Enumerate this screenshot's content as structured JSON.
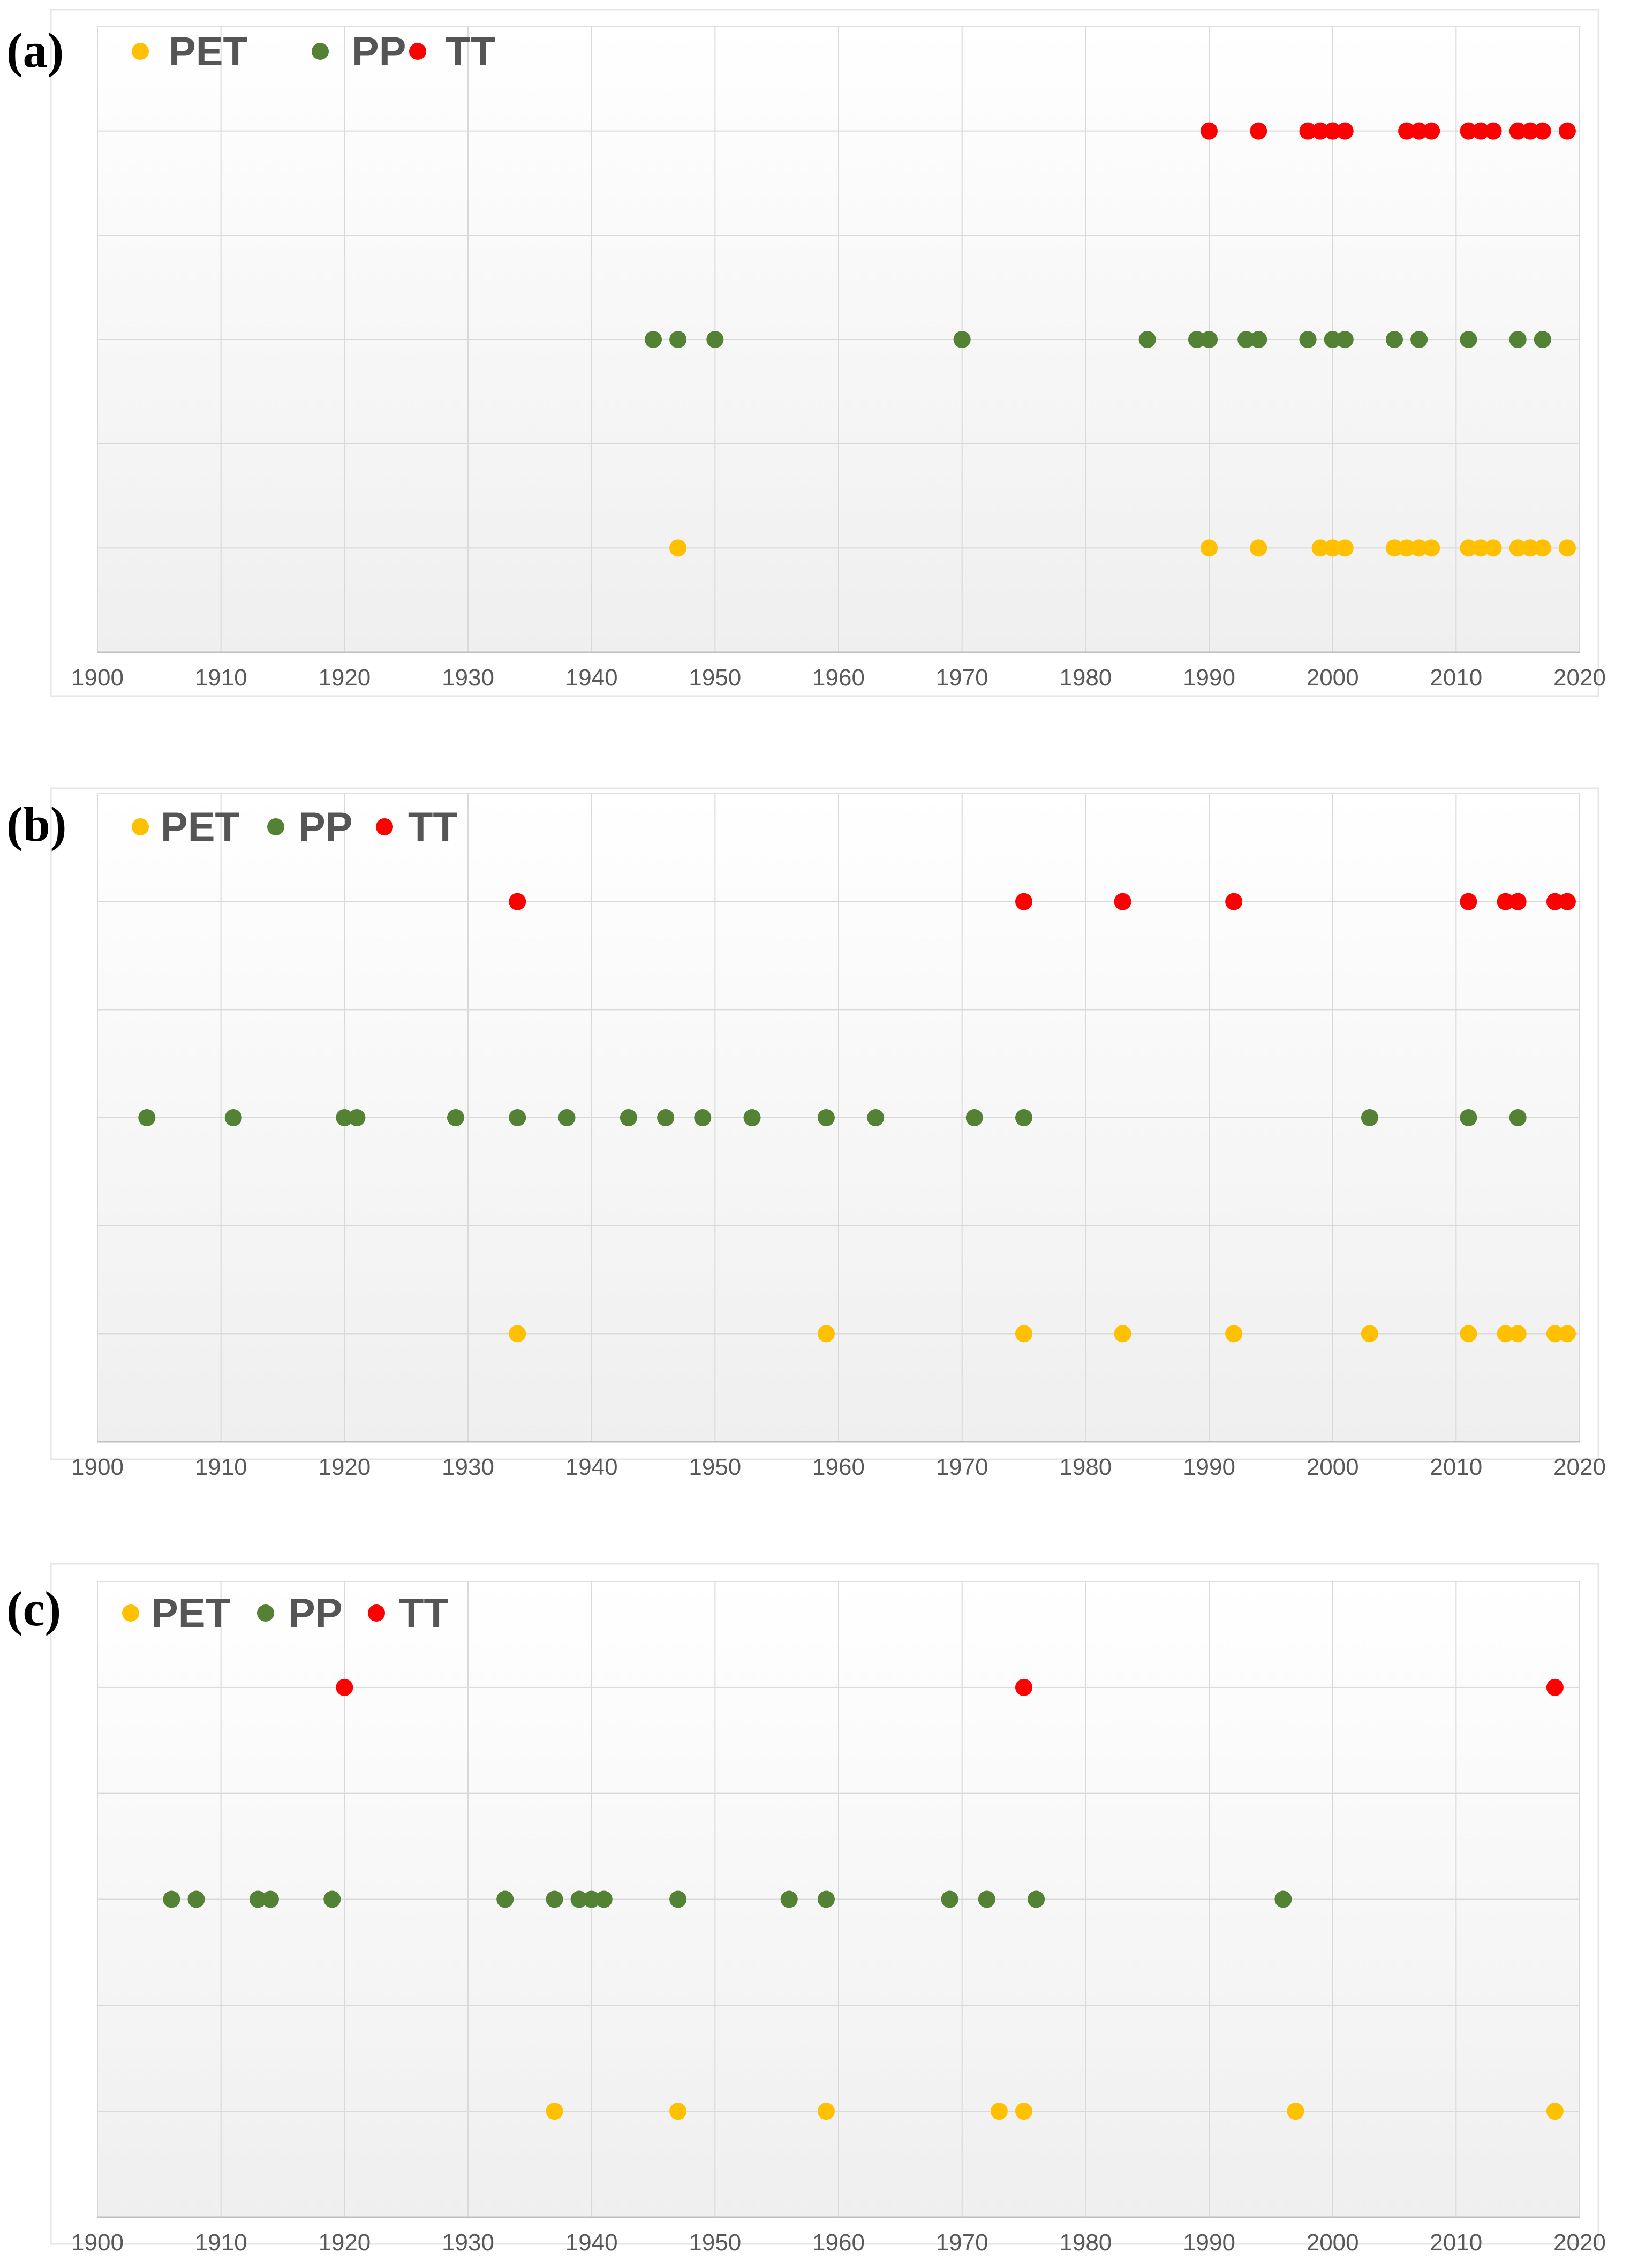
{
  "colors": {
    "PET": "#ffc000",
    "PP": "#548235",
    "TT": "#ff0000",
    "grid": "#d9d9d9",
    "axis": "#bfbfbf"
  },
  "chart_data": [
    {
      "type": "scatter",
      "panel_label": "(a)",
      "xlim": [
        1900,
        2020
      ],
      "x_ticks": [
        1900,
        1910,
        1920,
        1930,
        1940,
        1950,
        1960,
        1970,
        1980,
        1990,
        2000,
        2010,
        2020
      ],
      "grid": true,
      "legend_position": "top-left",
      "series": [
        {
          "name": "PET",
          "row": 1,
          "color": "#ffc000",
          "x": [
            1947,
            1990,
            1994,
            1999,
            2000,
            2001,
            2005,
            2006,
            2007,
            2008,
            2011,
            2012,
            2013,
            2015,
            2016,
            2017,
            2019
          ]
        },
        {
          "name": "PP",
          "row": 3,
          "color": "#548235",
          "x": [
            1945,
            1947,
            1950,
            1970,
            1985,
            1989,
            1990,
            1993,
            1994,
            1998,
            2000,
            2001,
            2005,
            2007,
            2011,
            2015,
            2017
          ]
        },
        {
          "name": "TT",
          "row": 5,
          "color": "#ff0000",
          "x": [
            1990,
            1994,
            1998,
            1999,
            2000,
            2001,
            2006,
            2007,
            2008,
            2011,
            2012,
            2013,
            2015,
            2016,
            2017,
            2019
          ]
        }
      ]
    },
    {
      "type": "scatter",
      "panel_label": "(b)",
      "xlim": [
        1900,
        2020
      ],
      "x_ticks": [
        1900,
        1910,
        1920,
        1930,
        1940,
        1950,
        1960,
        1970,
        1980,
        1990,
        2000,
        2010,
        2020
      ],
      "grid": true,
      "legend_position": "top-left",
      "series": [
        {
          "name": "PET",
          "row": 1,
          "color": "#ffc000",
          "x": [
            1934,
            1959,
            1975,
            1983,
            1992,
            2003,
            2011,
            2014,
            2015,
            2018,
            2019
          ]
        },
        {
          "name": "PP",
          "row": 3,
          "color": "#548235",
          "x": [
            1904,
            1911,
            1920,
            1921,
            1929,
            1934,
            1938,
            1943,
            1946,
            1949,
            1953,
            1959,
            1963,
            1971,
            1975,
            2003,
            2011,
            2015
          ]
        },
        {
          "name": "TT",
          "row": 5,
          "color": "#ff0000",
          "x": [
            1934,
            1975,
            1983,
            1992,
            2011,
            2014,
            2015,
            2018,
            2019
          ]
        }
      ]
    },
    {
      "type": "scatter",
      "panel_label": "(c)",
      "xlim": [
        1900,
        2020
      ],
      "x_ticks": [
        1900,
        1910,
        1920,
        1930,
        1940,
        1950,
        1960,
        1970,
        1980,
        1990,
        2000,
        2010,
        2020
      ],
      "grid": true,
      "legend_position": "top-left",
      "series": [
        {
          "name": "PET",
          "row": 1,
          "color": "#ffc000",
          "x": [
            1937,
            1947,
            1959,
            1973,
            1975,
            1997,
            2018
          ]
        },
        {
          "name": "PP",
          "row": 3,
          "color": "#548235",
          "x": [
            1906,
            1908,
            1913,
            1914,
            1919,
            1933,
            1937,
            1939,
            1940,
            1941,
            1947,
            1956,
            1959,
            1969,
            1972,
            1976,
            1996
          ]
        },
        {
          "name": "TT",
          "row": 5,
          "color": "#ff0000",
          "x": [
            1920,
            1975,
            2018
          ]
        }
      ]
    }
  ]
}
